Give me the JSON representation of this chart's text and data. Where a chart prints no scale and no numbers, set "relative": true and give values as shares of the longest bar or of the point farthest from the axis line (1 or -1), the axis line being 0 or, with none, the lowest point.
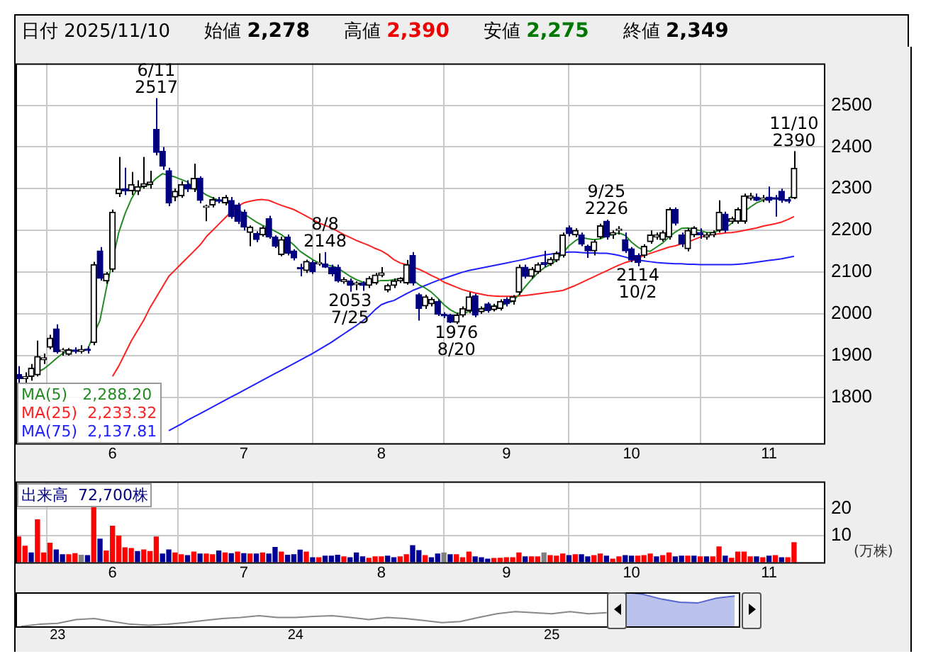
{
  "chart_data": [
    {
      "type": "candlestick",
      "annotations": [
        "日付 2025/11/10",
        "始値 2,278",
        "高値 2,390",
        "安値 2,275",
        "終値 2,349",
        {
          "text": "6/11\n2517",
          "y": 2517
        },
        {
          "text": "2053\n7/25",
          "y": 2053
        },
        {
          "text": "8/8\n2148",
          "y": 2148
        },
        {
          "text": "1976\n8/20",
          "y": 1976
        },
        {
          "text": "9/25\n2226",
          "y": 2226
        },
        {
          "text": "2114\n10/2",
          "y": 2114
        },
        {
          "text": "11/10\n2390",
          "y": 2390
        }
      ],
      "categories": [
        null,
        null,
        null,
        null,
        null,
        null,
        null,
        null,
        null,
        null,
        null,
        null,
        null,
        null,
        null,
        "6",
        null,
        null,
        null,
        null,
        null,
        null,
        null,
        null,
        null,
        null,
        null,
        null,
        null,
        null,
        null,
        null,
        null,
        null,
        null,
        null,
        "7",
        null,
        null,
        null,
        null,
        null,
        null,
        null,
        null,
        null,
        null,
        null,
        null,
        null,
        null,
        null,
        null,
        null,
        null,
        null,
        null,
        null,
        "8",
        null,
        null,
        null,
        null,
        null,
        null,
        null,
        null,
        null,
        null,
        null,
        null,
        null,
        null,
        null,
        null,
        null,
        null,
        null,
        "9",
        null,
        null,
        null,
        null,
        null,
        null,
        null,
        null,
        null,
        null,
        null,
        null,
        null,
        null,
        null,
        null,
        null,
        null,
        null,
        "10",
        null,
        null,
        null,
        null,
        null,
        null,
        null,
        null,
        null,
        null,
        null,
        null,
        null,
        null,
        null,
        null,
        null,
        null,
        null,
        null,
        null,
        "11",
        null,
        null,
        null,
        null
      ],
      "ohlc": [
        [
          1855,
          1875,
          1835,
          1845
        ],
        [
          1845,
          1860,
          1830,
          1850
        ],
        [
          1850,
          1880,
          1840,
          1870
        ],
        [
          1854,
          1936,
          1850,
          1898
        ],
        [
          1890,
          1905,
          1880,
          1895
        ],
        [
          1920,
          1950,
          1915,
          1942
        ],
        [
          1964,
          1975,
          1905,
          1909
        ],
        [
          1910,
          1918,
          1900,
          1912
        ],
        [
          1903,
          1918,
          1900,
          1914
        ],
        [
          1912,
          1920,
          1905,
          1910
        ],
        [
          1910,
          1925,
          1905,
          1915
        ],
        [
          1915,
          1922,
          1905,
          1912
        ],
        [
          1931,
          2125,
          1925,
          2118
        ],
        [
          2151,
          2160,
          2080,
          2085
        ],
        [
          2079,
          2100,
          2072,
          2096
        ],
        [
          2107,
          2250,
          2100,
          2244
        ],
        [
          2288,
          2376,
          2280,
          2299
        ],
        [
          2300,
          2350,
          2285,
          2295
        ],
        [
          2295,
          2340,
          2285,
          2310
        ],
        [
          2294,
          2320,
          2285,
          2305
        ],
        [
          2305,
          2376,
          2300,
          2312
        ],
        [
          2310,
          2343,
          2300,
          2316
        ],
        [
          2442,
          2517,
          2380,
          2387
        ],
        [
          2390,
          2400,
          2345,
          2354
        ],
        [
          2343,
          2350,
          2258,
          2266
        ],
        [
          2280,
          2300,
          2270,
          2294
        ],
        [
          2283,
          2318,
          2278,
          2310
        ],
        [
          2310,
          2320,
          2292,
          2299
        ],
        [
          2299,
          2360,
          2292,
          2325
        ],
        [
          2325,
          2330,
          2265,
          2272
        ],
        [
          2255,
          2262,
          2222,
          2255
        ],
        [
          2261,
          2280,
          2255,
          2274
        ],
        [
          2272,
          2280,
          2265,
          2270
        ],
        [
          2266,
          2285,
          2260,
          2279
        ],
        [
          2272,
          2280,
          2228,
          2233
        ],
        [
          2261,
          2266,
          2215,
          2222
        ],
        [
          2244,
          2250,
          2200,
          2208
        ],
        [
          2195,
          2212,
          2162,
          2208
        ],
        [
          2193,
          2198,
          2172,
          2178
        ],
        [
          2189,
          2210,
          2185,
          2206
        ],
        [
          2228,
          2235,
          2180,
          2184
        ],
        [
          2184,
          2188,
          2158,
          2162
        ],
        [
          2142,
          2185,
          2138,
          2178
        ],
        [
          2184,
          2190,
          2140,
          2145
        ],
        [
          2151,
          2155,
          2128,
          2134
        ],
        [
          2110,
          2120,
          2090,
          2108
        ],
        [
          2104,
          2130,
          2098,
          2126
        ],
        [
          2123,
          2128,
          2096,
          2101
        ],
        [
          2120,
          2145,
          2115,
          2123
        ],
        [
          2120,
          2148,
          2110,
          2112
        ],
        [
          2112,
          2118,
          2090,
          2096
        ],
        [
          2112,
          2118,
          2075,
          2079
        ],
        [
          2077,
          2088,
          2072,
          2082
        ],
        [
          2079,
          2085,
          2053,
          2068
        ],
        [
          2070,
          2078,
          2057,
          2074
        ],
        [
          2074,
          2078,
          2055,
          2068
        ],
        [
          2068,
          2090,
          2062,
          2085
        ],
        [
          2074,
          2098,
          2070,
          2093
        ],
        [
          2093,
          2112,
          2088,
          2098
        ],
        [
          2057,
          2072,
          2052,
          2068
        ],
        [
          2068,
          2085,
          2062,
          2079
        ],
        [
          2079,
          2088,
          2074,
          2085
        ],
        [
          2074,
          2129,
          2070,
          2118
        ],
        [
          2140,
          2148,
          2068,
          2074
        ],
        [
          2046,
          2050,
          1984,
          2013
        ],
        [
          2019,
          2046,
          2012,
          2041
        ],
        [
          2024,
          2040,
          2018,
          2035
        ],
        [
          2030,
          2035,
          1995,
          1999
        ],
        [
          1999,
          2004,
          1990,
          1995
        ],
        [
          1997,
          2000,
          1978,
          1980
        ],
        [
          1980,
          2002,
          1976,
          1997
        ],
        [
          1997,
          2018,
          1992,
          2013
        ],
        [
          2008,
          2052,
          2002,
          2041
        ],
        [
          2043,
          2048,
          1992,
          1997
        ],
        [
          2005,
          2018,
          2000,
          2013
        ],
        [
          2024,
          2028,
          2003,
          2008
        ],
        [
          2010,
          2024,
          2006,
          2019
        ],
        [
          2013,
          2035,
          2008,
          2030
        ],
        [
          2035,
          2040,
          2018,
          2024
        ],
        [
          2030,
          2045,
          2022,
          2041
        ],
        [
          2052,
          2118,
          2045,
          2112
        ],
        [
          2112,
          2118,
          2085,
          2090
        ],
        [
          2090,
          2112,
          2085,
          2107
        ],
        [
          2101,
          2123,
          2096,
          2118
        ],
        [
          2123,
          2151,
          2112,
          2118
        ],
        [
          2120,
          2136,
          2115,
          2131
        ],
        [
          2129,
          2150,
          2124,
          2145
        ],
        [
          2140,
          2195,
          2135,
          2189
        ],
        [
          2206,
          2212,
          2186,
          2192
        ],
        [
          2189,
          2205,
          2184,
          2200
        ],
        [
          2189,
          2195,
          2162,
          2167
        ],
        [
          2162,
          2166,
          2134,
          2151
        ],
        [
          2151,
          2178,
          2140,
          2173
        ],
        [
          2184,
          2216,
          2180,
          2211
        ],
        [
          2222,
          2226,
          2178,
          2184
        ],
        [
          2189,
          2200,
          2180,
          2195
        ],
        [
          2200,
          2210,
          2190,
          2200
        ],
        [
          2178,
          2195,
          2146,
          2151
        ],
        [
          2156,
          2160,
          2124,
          2129
        ],
        [
          2140,
          2145,
          2114,
          2123
        ],
        [
          2140,
          2167,
          2134,
          2162
        ],
        [
          2173,
          2200,
          2168,
          2189
        ],
        [
          2184,
          2195,
          2178,
          2189
        ],
        [
          2178,
          2200,
          2173,
          2195
        ],
        [
          2184,
          2255,
          2178,
          2250
        ],
        [
          2250,
          2255,
          2212,
          2217
        ],
        [
          2189,
          2195,
          2160,
          2167
        ],
        [
          2156,
          2206,
          2150,
          2200
        ],
        [
          2189,
          2210,
          2184,
          2206
        ],
        [
          2195,
          2205,
          2180,
          2189
        ],
        [
          2184,
          2195,
          2178,
          2189
        ],
        [
          2189,
          2200,
          2184,
          2195
        ],
        [
          2200,
          2272,
          2195,
          2244
        ],
        [
          2239,
          2245,
          2195,
          2200
        ],
        [
          2222,
          2233,
          2216,
          2228
        ],
        [
          2222,
          2255,
          2216,
          2250
        ],
        [
          2222,
          2288,
          2216,
          2283
        ],
        [
          2277,
          2290,
          2272,
          2283
        ],
        [
          2280,
          2288,
          2270,
          2272
        ],
        [
          2274,
          2285,
          2268,
          2277
        ],
        [
          2280,
          2305,
          2266,
          2272
        ],
        [
          2277,
          2285,
          2233,
          2275
        ],
        [
          2294,
          2300,
          2266,
          2272
        ],
        [
          2274,
          2280,
          2265,
          2270
        ],
        [
          2278,
          2390,
          2275,
          2349
        ]
      ],
      "series": [
        {
          "name": "MA(5)   2,288.20",
          "type": "line",
          "color": "#228b22",
          "values": [
            null,
            null,
            1854,
            1860,
            1868,
            1880,
            1893,
            1905,
            1910,
            1912,
            1912,
            1915,
            null,
            1985,
            2060,
            null,
            2195,
            2240,
            2275,
            2300,
            2306,
            2310,
            2325,
            2336,
            2332,
            2328,
            2322,
            2316,
            2300,
            2295,
            2285,
            2278,
            2272,
            2268,
            2262,
            2252,
            2240,
            2230,
            2220,
            2212,
            2206,
            2198,
            2190,
            2178,
            2165,
            2150,
            2140,
            2130,
            2122,
            2118,
            2115,
            2110,
            2100,
            2090,
            2082,
            2076,
            2074,
            2077,
            2080,
            2080,
            2082,
            2084,
            2088,
            2082,
            2070,
            2062,
            2052,
            2038,
            2022,
            2010,
            2002,
            2000,
            2006,
            2008,
            2012,
            2016,
            2019,
            2020,
            2024,
            2030,
            2046,
            2065,
            2082,
            2098,
            2110,
            2118,
            2128,
            2145,
            2163,
            2175,
            2183,
            2180,
            2178,
            2180,
            2186,
            2190,
            2194,
            2188,
            2172,
            2160,
            2152,
            2150,
            2160,
            2170,
            2184,
            2196,
            2205,
            2206,
            2202,
            2200,
            2195,
            2195,
            2200,
            2205,
            2217,
            2230,
            2244,
            2256,
            2266,
            2272,
            2277,
            2276,
            2274,
            2273,
            2288.2
          ]
        },
        {
          "name": "MA(25)  2,233.32",
          "type": "line",
          "color": "#ff2020",
          "values": [
            null,
            null,
            null,
            null,
            null,
            null,
            null,
            null,
            null,
            null,
            null,
            null,
            null,
            null,
            null,
            1850,
            1875,
            1905,
            1935,
            1960,
            1985,
            2015,
            2040,
            2065,
            2090,
            2105,
            2120,
            2135,
            2150,
            2165,
            2185,
            2200,
            2215,
            2230,
            2245,
            2258,
            2266,
            2270,
            2273,
            2274,
            2272,
            2266,
            2260,
            2255,
            2250,
            2242,
            2234,
            2226,
            2218,
            2212,
            2206,
            2198,
            2190,
            2183,
            2176,
            2170,
            2164,
            2157,
            2151,
            2142,
            2130,
            2122,
            2118,
            2112,
            2107,
            2100,
            2092,
            2085,
            2076,
            2070,
            2064,
            2058,
            2054,
            2050,
            2047,
            2044,
            2043,
            2042,
            2042,
            2042,
            2043,
            2044,
            2046,
            2048,
            2050,
            2052,
            2054,
            2056,
            2062,
            2068,
            2075,
            2082,
            2089,
            2096,
            2103,
            2110,
            2117,
            2123,
            2127,
            2133,
            2140,
            2145,
            2150,
            2155,
            2160,
            2163,
            2168,
            2172,
            2178,
            2184,
            2187,
            2190,
            2192,
            2194,
            2195,
            2197,
            2200,
            2203,
            2206,
            2210,
            2213,
            2216,
            2220,
            2226,
            2233.32
          ]
        },
        {
          "name": "MA(75)  2,137.81",
          "type": "line",
          "color": "#2020ff",
          "values": [
            null,
            null,
            null,
            null,
            null,
            null,
            null,
            null,
            null,
            null,
            null,
            null,
            null,
            null,
            null,
            null,
            null,
            null,
            null,
            null,
            null,
            null,
            null,
            null,
            1720,
            1728,
            1736,
            1745,
            1753,
            1761,
            1769,
            1777,
            1785,
            1793,
            1801,
            1809,
            1817,
            1825,
            1833,
            1841,
            1849,
            1857,
            1865,
            1873,
            1881,
            1889,
            1897,
            1905,
            1914,
            1923,
            1932,
            1942,
            1952,
            1962,
            1972,
            1983,
            1995,
            2010,
            2022,
            2028,
            2032,
            2040,
            2048,
            2056,
            2062,
            2068,
            2074,
            2080,
            2085,
            2090,
            2095,
            2100,
            2104,
            2107,
            2110,
            2113,
            2116,
            2119,
            2122,
            2125,
            2128,
            2131,
            2135,
            2138,
            2141,
            2143,
            2145,
            2147,
            2148,
            2148,
            2147,
            2146,
            2146,
            2145,
            2145,
            2143,
            2140,
            2136,
            2132,
            2129,
            2127,
            2125,
            2123,
            2122,
            2121,
            2120,
            2120,
            2119,
            2119,
            2118,
            2118,
            2118,
            2118,
            2118,
            2118,
            2119,
            2120,
            2122,
            2124,
            2126,
            2128,
            2130,
            2132,
            2135,
            2137.81
          ]
        }
      ],
      "ylim": [
        1690,
        2600
      ],
      "yticks": [
        1800,
        1900,
        2000,
        2100,
        2200,
        2300,
        2400,
        2500
      ],
      "grid": true,
      "legend": "bottom left"
    },
    {
      "type": "bar",
      "title": "出来高  72,700株",
      "ylabel": "(万株)",
      "categories": [
        null,
        null,
        null,
        null,
        null,
        null,
        null,
        null,
        null,
        null,
        null,
        null,
        null,
        null,
        null,
        "6",
        null,
        null,
        null,
        null,
        null,
        null,
        null,
        null,
        null,
        null,
        null,
        null,
        null,
        null,
        null,
        null,
        null,
        null,
        null,
        null,
        "7",
        null,
        null,
        null,
        null,
        null,
        null,
        null,
        null,
        null,
        null,
        null,
        null,
        null,
        null,
        null,
        null,
        null,
        null,
        null,
        null,
        null,
        "8",
        null,
        null,
        null,
        null,
        null,
        null,
        null,
        null,
        null,
        null,
        null,
        null,
        null,
        null,
        null,
        null,
        null,
        null,
        null,
        "9",
        null,
        null,
        null,
        null,
        null,
        null,
        null,
        null,
        null,
        null,
        null,
        null,
        null,
        null,
        null,
        null,
        null,
        null,
        null,
        "10",
        null,
        null,
        null,
        null,
        null,
        null,
        null,
        null,
        null,
        null,
        null,
        null,
        null,
        null,
        null,
        null,
        null,
        null,
        null,
        null,
        null,
        "11",
        null,
        null,
        null,
        null
      ],
      "values": [
        9.4,
        6.0,
        3.5,
        15.8,
        3.5,
        7.1,
        4.6,
        2.8,
        2.8,
        3.2,
        2.6,
        2.5,
        21.2,
        8.6,
        4.2,
        13.4,
        9.7,
        5.4,
        5.1,
        4.0,
        4.6,
        4.0,
        9.4,
        3.1,
        4.6,
        3.5,
        2.8,
        2.5,
        3.8,
        3.1,
        3.1,
        2.8,
        4.2,
        3.5,
        3.2,
        3.8,
        3.2,
        3.1,
        3.1,
        3.5,
        3.1,
        5.5,
        3.8,
        2.6,
        2.8,
        4.5,
        3.8,
        1.7,
        1.7,
        2.3,
        2.3,
        2.6,
        2.0,
        1.7,
        3.5,
        2.0,
        1.5,
        2.0,
        2.0,
        2.3,
        1.7,
        2.0,
        2.8,
        6.2,
        4.3,
        2.5,
        1.7,
        3.1,
        3.5,
        2.8,
        2.8,
        1.7,
        3.8,
        2.0,
        1.7,
        1.2,
        1.4,
        1.5,
        1.7,
        1.7,
        3.5,
        2.0,
        2.0,
        2.0,
        3.5,
        2.5,
        2.3,
        3.1,
        2.5,
        2.8,
        2.8,
        2.0,
        2.5,
        3.1,
        2.3,
        1.2,
        2.0,
        2.5,
        2.3,
        2.3,
        2.5,
        3.1,
        2.0,
        2.5,
        3.5,
        2.0,
        2.3,
        2.3,
        2.3,
        2.0,
        2.0,
        2.0,
        5.7,
        2.3,
        1.5,
        3.8,
        3.8,
        2.0,
        2.0,
        1.7,
        2.3,
        2.5,
        1.7,
        1.7,
        7.27
      ],
      "colors": [
        "#ff0000",
        "#ff0000",
        "#000099",
        "#ff0000",
        "#ff0000",
        "#ff0000",
        "#000099",
        "#000099",
        "#ff0000",
        "#ff0000",
        "#808080",
        "#000099",
        "#ff0000",
        "#000099",
        "#ff0000",
        "#ff0000",
        "#ff0000",
        "#ff0000",
        "#ff0000",
        "#000099",
        "#ff0000",
        "#ff0000",
        "#ff0000",
        "#000099",
        "#000099",
        "#ff0000",
        "#ff0000",
        "#000099",
        "#ff0000",
        "#000099",
        "#ff0000",
        "#ff0000",
        "#000099",
        "#ff0000",
        "#000099",
        "#ff0000",
        "#000099",
        "#ff0000",
        "#000099",
        "#ff0000",
        "#000099",
        "#000099",
        "#ff0000",
        "#000099",
        "#000099",
        "#000099",
        "#ff0000",
        "#000099",
        "#ff0000",
        "#000099",
        "#000099",
        "#000099",
        "#ff0000",
        "#000099",
        "#000099",
        "#000099",
        "#ff0000",
        "#ff0000",
        "#ff0000",
        "#000099",
        "#000099",
        "#ff0000",
        "#ff0000",
        "#000099",
        "#000099",
        "#ff0000",
        "#000099",
        "#000099",
        "#808080",
        "#000099",
        "#ff0000",
        "#ff0000",
        "#ff0000",
        "#000099",
        "#000099",
        "#000099",
        "#ff0000",
        "#ff0000",
        "#ff0000",
        "#ff0000",
        "#ff0000",
        "#000099",
        "#ff0000",
        "#ff0000",
        "#808080",
        "#ff0000",
        "#ff0000",
        "#ff0000",
        "#000099",
        "#ff0000",
        "#000099",
        "#000099",
        "#ff0000",
        "#ff0000",
        "#000099",
        "#ff0000",
        "#ff0000",
        "#000099",
        "#000099",
        "#ff0000",
        "#ff0000",
        "#ff0000",
        "#000099",
        "#ff0000",
        "#ff0000",
        "#000099",
        "#000099",
        "#ff0000",
        "#000099",
        "#ff0000",
        "#000099",
        "#ff0000",
        "#ff0000",
        "#000099",
        "#ff0000",
        "#ff0000",
        "#ff0000",
        "#ff0000",
        "#000099",
        "#ff0000",
        "#000099",
        "#ff0000",
        "#000099",
        "#ff0000",
        "#ff0000"
      ],
      "ylim": [
        0,
        30
      ],
      "yticks": [
        10,
        20
      ],
      "grid": true
    },
    {
      "type": "area",
      "relative": true,
      "tick_labels": "x",
      "categories": [
        null,
        null,
        "23",
        null,
        null,
        null,
        null,
        null,
        null,
        null,
        null,
        null,
        null,
        null,
        null,
        "24",
        null,
        null,
        null,
        null,
        null,
        null,
        null,
        null,
        null,
        null,
        null,
        null,
        null,
        "25",
        null,
        null,
        null,
        null,
        null,
        null,
        null,
        null,
        null,
        null
      ],
      "series": [
        {
          "type": "line",
          "color": "#888888",
          "values": [
            0,
            0.06,
            0.09,
            0.2,
            0.23,
            0.14,
            0.06,
            0.03,
            0.06,
            0.11,
            0.17,
            0.23,
            0.26,
            0.31,
            0.26,
            0.26,
            0.29,
            0.31,
            0.26,
            0.2,
            0.26,
            0.23,
            0.17,
            0.11,
            0.14,
            0.26,
            0.37,
            0.43,
            0.4,
            0.37,
            0.43,
            0.37,
            0.4,
            null,
            null,
            null,
            null,
            null,
            null,
            null
          ]
        },
        {
          "type": "area",
          "color": "#5566cc",
          "values": [
            null,
            null,
            null,
            null,
            null,
            null,
            null,
            null,
            null,
            null,
            null,
            null,
            null,
            null,
            null,
            null,
            null,
            null,
            null,
            null,
            null,
            null,
            null,
            null,
            null,
            null,
            null,
            null,
            null,
            null,
            null,
            null,
            null,
            1,
            0.94,
            0.8,
            0.71,
            0.69,
            0.83,
            0.89
          ]
        }
      ]
    }
  ]
}
